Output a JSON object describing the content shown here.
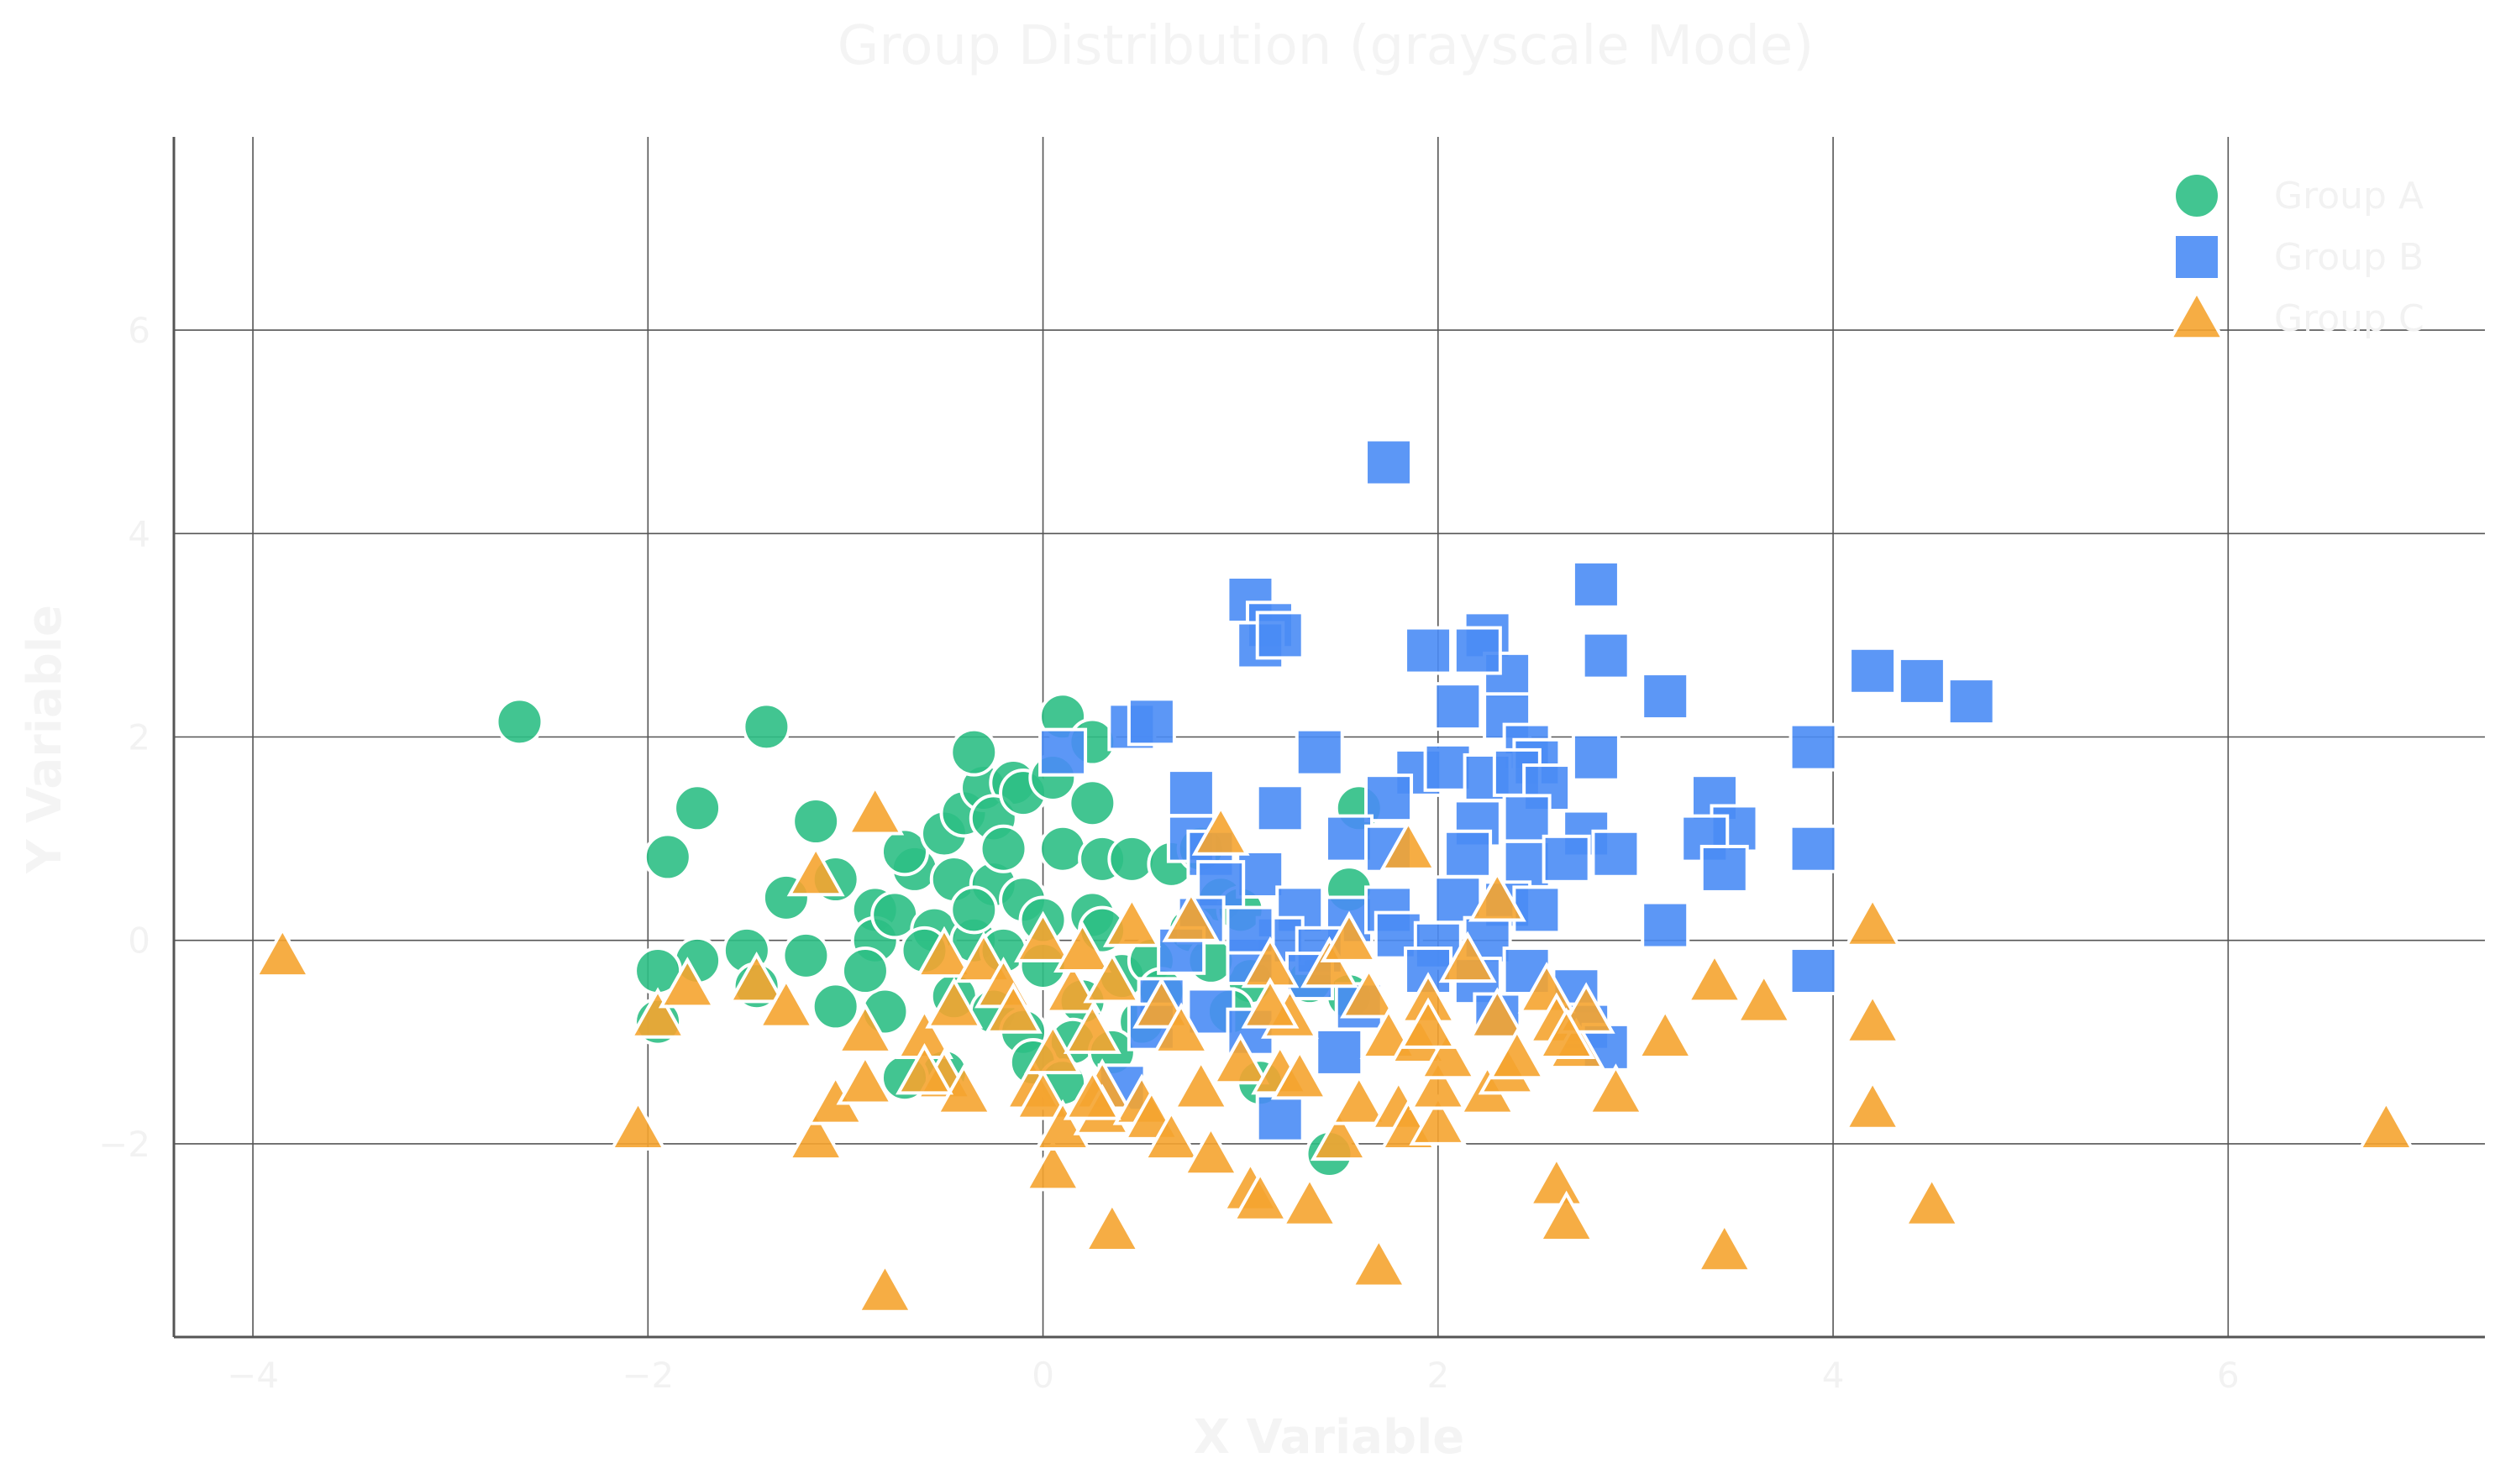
{
  "chart_data": {
    "type": "scatter",
    "title": "Group Distribution (grayscale Mode)",
    "xlabel": "X Variable",
    "ylabel": "Y Variable",
    "xlim": [
      -4.4,
      7.3
    ],
    "ylim": [
      -3.9,
      7.9
    ],
    "xticks": [
      -4,
      -2,
      0,
      2,
      4,
      6
    ],
    "xtick_labels": [
      "−4",
      "−2",
      "0",
      "2",
      "4",
      "6"
    ],
    "yticks": [
      -2,
      0,
      2,
      4,
      6
    ],
    "ytick_labels": [
      "−2",
      "0",
      "2",
      "4",
      "6"
    ],
    "grid": true,
    "legend_position": "top-right",
    "series": [
      {
        "name": "Group A",
        "marker": "circle",
        "color": "#2dbf85",
        "points": [
          [
            -2.65,
            2.15
          ],
          [
            -1.4,
            2.1
          ],
          [
            -1.75,
            1.3
          ],
          [
            -1.9,
            0.82
          ],
          [
            -1.15,
            1.17
          ],
          [
            -1.3,
            0.42
          ],
          [
            -1.05,
            0.6
          ],
          [
            -0.85,
            0.3
          ],
          [
            -1.5,
            -0.1
          ],
          [
            -1.2,
            -0.15
          ],
          [
            -1.75,
            -0.2
          ],
          [
            -1.95,
            -0.3
          ],
          [
            -1.45,
            -0.45
          ],
          [
            -1.05,
            -0.65
          ],
          [
            -0.85,
            0.0
          ],
          [
            -0.75,
            0.25
          ],
          [
            -0.65,
            0.7
          ],
          [
            -0.7,
            0.87
          ],
          [
            -0.5,
            1.05
          ],
          [
            -0.4,
            1.25
          ],
          [
            -0.3,
            1.5
          ],
          [
            -0.15,
            1.55
          ],
          [
            -0.35,
            1.85
          ],
          [
            -0.25,
            1.2
          ],
          [
            -0.1,
            1.45
          ],
          [
            0.1,
            2.2
          ],
          [
            0.25,
            1.95
          ],
          [
            0.05,
            1.6
          ],
          [
            0.25,
            1.35
          ],
          [
            0.1,
            0.9
          ],
          [
            0.3,
            0.8
          ],
          [
            0.45,
            0.8
          ],
          [
            -0.45,
            0.6
          ],
          [
            -0.25,
            0.55
          ],
          [
            -0.1,
            0.4
          ],
          [
            0.0,
            0.2
          ],
          [
            0.25,
            0.25
          ],
          [
            -0.55,
            0.1
          ],
          [
            -0.35,
            0.0
          ],
          [
            -0.2,
            -0.1
          ],
          [
            0.0,
            -0.25
          ],
          [
            -0.45,
            -0.55
          ],
          [
            -0.25,
            -0.7
          ],
          [
            -0.1,
            -0.9
          ],
          [
            0.2,
            -0.6
          ],
          [
            0.4,
            -0.35
          ],
          [
            0.55,
            -0.2
          ],
          [
            0.3,
            0.1
          ],
          [
            0.5,
            -0.8
          ],
          [
            0.15,
            -1.0
          ],
          [
            -0.05,
            -1.2
          ],
          [
            0.1,
            -1.4
          ],
          [
            -0.5,
            -1.3
          ],
          [
            -0.7,
            -1.35
          ],
          [
            -0.8,
            -0.7
          ],
          [
            -1.95,
            -0.8
          ],
          [
            0.65,
            0.75
          ],
          [
            0.8,
            0.9
          ],
          [
            0.9,
            0.4
          ],
          [
            1.0,
            0.3
          ],
          [
            0.75,
            0.1
          ],
          [
            1.05,
            -0.4
          ],
          [
            0.95,
            -0.7
          ],
          [
            1.1,
            -1.4
          ],
          [
            1.55,
            0.5
          ],
          [
            1.6,
            1.3
          ],
          [
            1.55,
            -0.55
          ],
          [
            1.35,
            -0.4
          ],
          [
            0.85,
            -0.2
          ],
          [
            1.45,
            -2.1
          ],
          [
            -0.2,
            0.9
          ],
          [
            -0.6,
            -0.1
          ],
          [
            -0.9,
            -0.3
          ],
          [
            0.35,
            -1.1
          ],
          [
            0.6,
            -0.5
          ],
          [
            -0.35,
            0.3
          ]
        ]
      },
      {
        "name": "Group B",
        "marker": "square",
        "color": "#4a8cf5",
        "points": [
          [
            1.75,
            4.7
          ],
          [
            2.8,
            3.5
          ],
          [
            1.05,
            3.35
          ],
          [
            1.15,
            3.1
          ],
          [
            1.1,
            2.9
          ],
          [
            1.2,
            3.0
          ],
          [
            2.25,
            3.0
          ],
          [
            2.35,
            2.6
          ],
          [
            1.95,
            2.85
          ],
          [
            2.2,
            2.85
          ],
          [
            2.85,
            2.8
          ],
          [
            3.15,
            2.4
          ],
          [
            2.1,
            2.3
          ],
          [
            2.35,
            2.2
          ],
          [
            0.45,
            2.1
          ],
          [
            0.55,
            2.15
          ],
          [
            0.1,
            1.85
          ],
          [
            1.4,
            1.85
          ],
          [
            2.45,
            1.9
          ],
          [
            2.5,
            1.75
          ],
          [
            2.8,
            1.8
          ],
          [
            1.9,
            1.65
          ],
          [
            2.05,
            1.7
          ],
          [
            2.25,
            1.6
          ],
          [
            2.4,
            1.65
          ],
          [
            2.55,
            1.5
          ],
          [
            0.75,
            1.45
          ],
          [
            1.2,
            1.3
          ],
          [
            1.75,
            1.4
          ],
          [
            2.2,
            1.15
          ],
          [
            2.45,
            1.2
          ],
          [
            2.75,
            1.05
          ],
          [
            3.4,
            1.4
          ],
          [
            3.5,
            1.1
          ],
          [
            0.75,
            1.0
          ],
          [
            0.85,
            0.85
          ],
          [
            1.1,
            0.65
          ],
          [
            1.55,
            1.0
          ],
          [
            1.75,
            0.9
          ],
          [
            2.15,
            0.85
          ],
          [
            2.45,
            0.75
          ],
          [
            2.65,
            0.8
          ],
          [
            2.9,
            0.85
          ],
          [
            3.35,
            1.0
          ],
          [
            3.45,
            0.7
          ],
          [
            3.9,
            0.9
          ],
          [
            0.9,
            0.55
          ],
          [
            1.3,
            0.3
          ],
          [
            1.55,
            0.2
          ],
          [
            1.75,
            0.3
          ],
          [
            2.1,
            0.4
          ],
          [
            2.35,
            0.35
          ],
          [
            2.5,
            0.3
          ],
          [
            3.15,
            0.15
          ],
          [
            0.8,
            0.2
          ],
          [
            1.2,
            0.0
          ],
          [
            1.4,
            -0.1
          ],
          [
            1.8,
            0.05
          ],
          [
            2.0,
            -0.05
          ],
          [
            2.25,
            0.0
          ],
          [
            0.7,
            -0.1
          ],
          [
            1.05,
            -0.2
          ],
          [
            1.35,
            -0.35
          ],
          [
            1.95,
            -0.3
          ],
          [
            2.2,
            -0.4
          ],
          [
            2.45,
            -0.3
          ],
          [
            2.7,
            -0.5
          ],
          [
            0.6,
            -0.6
          ],
          [
            0.85,
            -0.7
          ],
          [
            1.05,
            -0.9
          ],
          [
            1.6,
            -0.65
          ],
          [
            2.3,
            -0.75
          ],
          [
            2.75,
            -0.85
          ],
          [
            2.85,
            -1.05
          ],
          [
            1.5,
            -1.1
          ],
          [
            0.55,
            -0.85
          ],
          [
            0.4,
            -1.45
          ],
          [
            1.2,
            -1.75
          ],
          [
            3.9,
            -0.3
          ],
          [
            4.2,
            2.65
          ],
          [
            4.45,
            2.55
          ],
          [
            4.7,
            2.35
          ],
          [
            3.9,
            1.9
          ],
          [
            1.05,
            0.1
          ]
        ]
      },
      {
        "name": "Group C",
        "marker": "triangle",
        "color": "#f5a430",
        "points": [
          [
            -3.85,
            -0.15
          ],
          [
            -2.05,
            -1.85
          ],
          [
            -1.95,
            -0.75
          ],
          [
            -1.8,
            -0.45
          ],
          [
            -1.45,
            -0.4
          ],
          [
            -1.3,
            -0.65
          ],
          [
            -1.15,
            0.65
          ],
          [
            -1.15,
            -1.95
          ],
          [
            -1.05,
            -1.6
          ],
          [
            -0.9,
            -0.9
          ],
          [
            -0.9,
            -1.4
          ],
          [
            -0.85,
            1.25
          ],
          [
            -0.8,
            -3.45
          ],
          [
            -0.6,
            -0.95
          ],
          [
            -0.5,
            -1.35
          ],
          [
            -0.5,
            -0.15
          ],
          [
            -0.45,
            -0.65
          ],
          [
            -0.4,
            -1.5
          ],
          [
            -0.3,
            -0.2
          ],
          [
            -0.2,
            -0.45
          ],
          [
            -0.15,
            -0.7
          ],
          [
            -0.05,
            -1.45
          ],
          [
            0.0,
            0.0
          ],
          [
            0.0,
            -1.55
          ],
          [
            0.05,
            -1.1
          ],
          [
            0.05,
            -2.25
          ],
          [
            0.1,
            -1.85
          ],
          [
            0.15,
            -0.5
          ],
          [
            0.2,
            -0.1
          ],
          [
            0.25,
            -0.9
          ],
          [
            0.3,
            -1.45
          ],
          [
            0.3,
            -1.7
          ],
          [
            0.35,
            -0.4
          ],
          [
            0.35,
            -2.85
          ],
          [
            0.45,
            0.15
          ],
          [
            0.5,
            -1.6
          ],
          [
            0.55,
            -1.75
          ],
          [
            0.6,
            -0.65
          ],
          [
            0.65,
            -1.95
          ],
          [
            0.7,
            -0.9
          ],
          [
            0.75,
            0.2
          ],
          [
            0.8,
            -1.45
          ],
          [
            0.85,
            -2.1
          ],
          [
            0.9,
            1.05
          ],
          [
            1.0,
            -1.2
          ],
          [
            1.05,
            -2.45
          ],
          [
            1.1,
            -2.55
          ],
          [
            1.15,
            -0.25
          ],
          [
            1.2,
            -1.3
          ],
          [
            1.25,
            -0.75
          ],
          [
            1.3,
            -1.35
          ],
          [
            1.35,
            -2.6
          ],
          [
            1.45,
            -0.25
          ],
          [
            1.5,
            -1.95
          ],
          [
            1.55,
            0.0
          ],
          [
            1.6,
            -1.6
          ],
          [
            1.65,
            -0.55
          ],
          [
            1.7,
            -3.2
          ],
          [
            1.75,
            -0.95
          ],
          [
            1.8,
            -1.65
          ],
          [
            1.85,
            0.9
          ],
          [
            1.85,
            -1.85
          ],
          [
            1.9,
            -1.0
          ],
          [
            1.95,
            -0.6
          ],
          [
            2.0,
            -1.8
          ],
          [
            2.0,
            -1.45
          ],
          [
            2.05,
            -1.15
          ],
          [
            2.15,
            -0.2
          ],
          [
            2.25,
            -1.5
          ],
          [
            2.3,
            -0.75
          ],
          [
            2.3,
            0.4
          ],
          [
            2.35,
            -1.3
          ],
          [
            2.4,
            -1.15
          ],
          [
            2.55,
            -0.5
          ],
          [
            2.6,
            -0.8
          ],
          [
            2.6,
            -2.4
          ],
          [
            2.65,
            -2.75
          ],
          [
            2.7,
            -1.05
          ],
          [
            2.75,
            -0.7
          ],
          [
            2.9,
            -1.5
          ],
          [
            3.15,
            -0.95
          ],
          [
            3.4,
            -0.4
          ],
          [
            3.45,
            -3.05
          ],
          [
            3.65,
            -0.6
          ],
          [
            4.2,
            0.15
          ],
          [
            4.2,
            -0.8
          ],
          [
            4.2,
            -1.65
          ],
          [
            4.5,
            -2.6
          ],
          [
            6.8,
            -1.85
          ],
          [
            -0.6,
            -1.3
          ],
          [
            0.25,
            -1.55
          ],
          [
            1.15,
            -0.65
          ],
          [
            1.95,
            -0.85
          ],
          [
            2.65,
            -0.95
          ]
        ]
      }
    ]
  }
}
